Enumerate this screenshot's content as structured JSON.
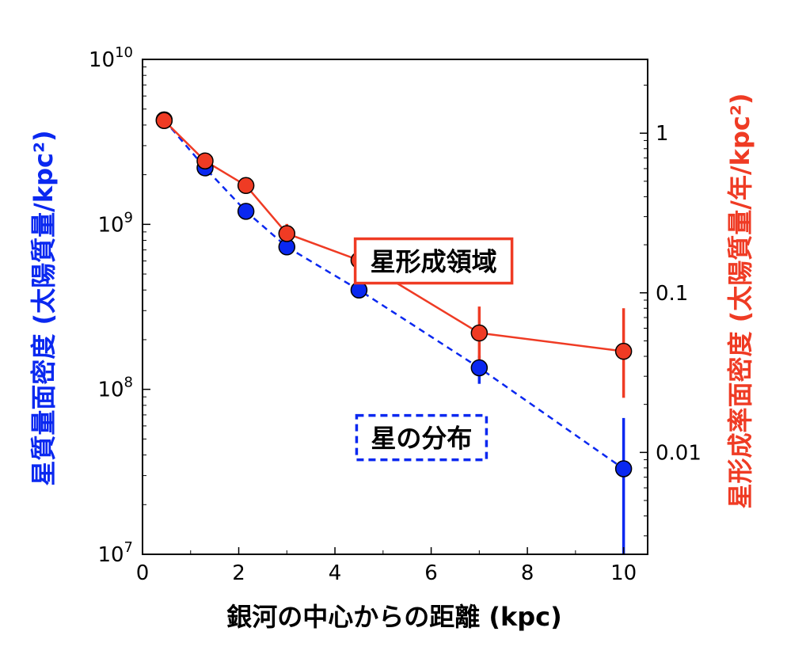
{
  "chart_data": {
    "type": "line",
    "xlabel": "銀河の中心からの距離 (kpc)",
    "ylabel_left": "星質量面密度 (太陽質量/kpc²)",
    "ylabel_right": "星形成率面密度 (太陽質量/年/kpc²)",
    "xlim": [
      0,
      10.5
    ],
    "ylim_left": [
      10000000,
      10000000000
    ],
    "ylim_right": [
      0.0023,
      2.9
    ],
    "yscale": "log",
    "x_ticks": [
      "0",
      "2",
      "4",
      "6",
      "8",
      "10"
    ],
    "y_left_ticks": [
      {
        "base": "10",
        "exp": "7"
      },
      {
        "base": "10",
        "exp": "8"
      },
      {
        "base": "10",
        "exp": "9"
      },
      {
        "base": "10",
        "exp": "10"
      }
    ],
    "y_right_ticks": [
      "0.01",
      "0.1",
      "1"
    ],
    "grid": false,
    "series": [
      {
        "label": "星の分布",
        "axis": "left",
        "color": "#0a28f0",
        "line_style": "dashed",
        "x": [
          0.45,
          1.3,
          2.15,
          3.0,
          4.5,
          7.0,
          10.0
        ],
        "y": [
          4300000000,
          2200000000,
          1200000000,
          730000000,
          400000000,
          135000000,
          33000000
        ],
        "err_low": [
          4300000000,
          2200000000,
          1200000000,
          730000000,
          400000000,
          108000000,
          10000000
        ],
        "err_high": [
          4300000000,
          2200000000,
          1200000000,
          730000000,
          400000000,
          160000000,
          67000000
        ]
      },
      {
        "label": "星形成領域",
        "axis": "right",
        "color": "#ef3b24",
        "line_style": "solid",
        "x": [
          0.45,
          1.3,
          2.15,
          3.0,
          4.5,
          7.0,
          10.0
        ],
        "y": [
          1.2,
          0.67,
          0.47,
          0.235,
          0.16,
          0.056,
          0.043
        ],
        "err_low": [
          1.2,
          0.67,
          0.47,
          0.2,
          0.12,
          0.038,
          0.022
        ],
        "err_high": [
          1.2,
          0.67,
          0.47,
          0.27,
          0.2,
          0.082,
          0.08
        ]
      }
    ],
    "annotations": [
      {
        "text": "星形成領域",
        "box_color": "#ef3b24",
        "box_style": "solid",
        "x": 6.05,
        "y_left": 600000000
      },
      {
        "text": "星の分布",
        "box_color": "#0a28f0",
        "box_style": "dashed",
        "x": 5.8,
        "y_left": 51000000
      }
    ]
  }
}
